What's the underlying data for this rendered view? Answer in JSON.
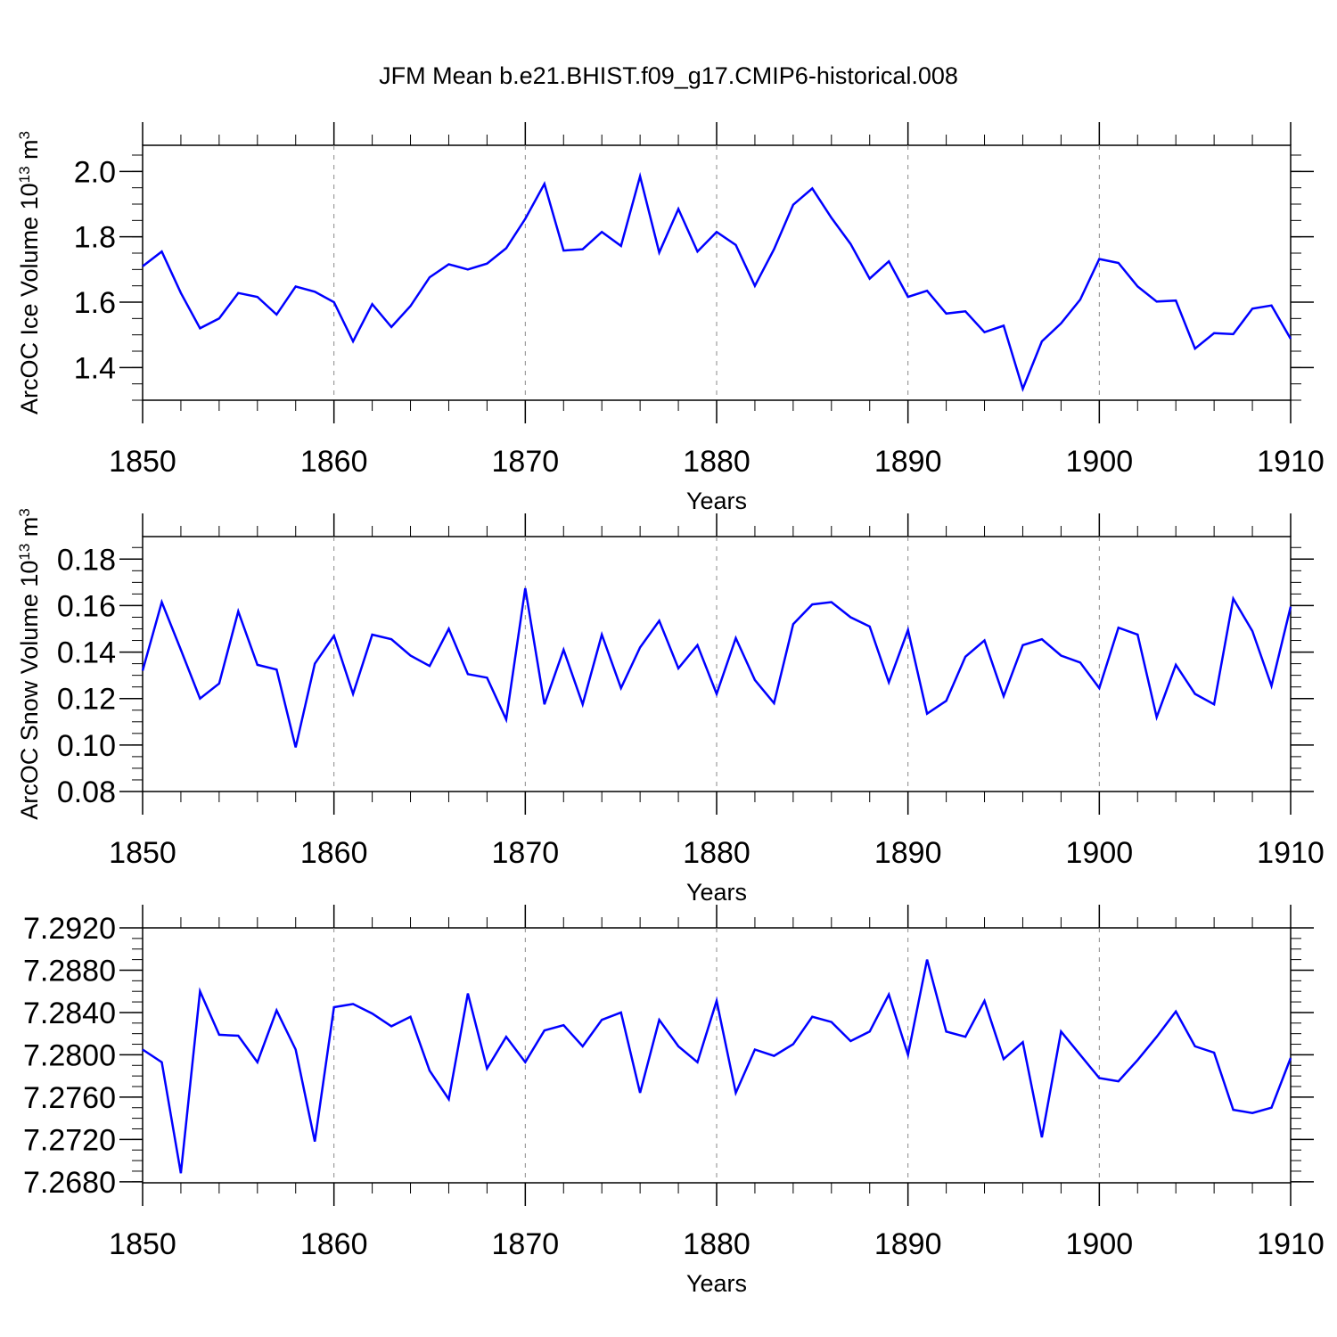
{
  "title": "JFM Mean b.e21.BHIST.f09_g17.CMIP6-historical.008",
  "colors": {
    "series": "#0000ff",
    "axis": "#000000",
    "grid": "#888888"
  },
  "chart_data": [
    {
      "type": "line",
      "xlabel": "Years",
      "ylabel": "ArcOC Ice Volume 10",
      "ylabel_sup": "13",
      "ylabel_unit": " m",
      "ylabel_unit_sup": "3",
      "xlim": [
        1850,
        1910
      ],
      "ylim": [
        1.3,
        2.08
      ],
      "xticks": [
        "1850",
        "1860",
        "1870",
        "1880",
        "1890",
        "1900",
        "1910"
      ],
      "yticks": [
        "1.4",
        "1.6",
        "1.8",
        "2.0"
      ],
      "grid": "vertical dashed at major x ticks",
      "x": [
        1850,
        1851,
        1852,
        1853,
        1854,
        1855,
        1856,
        1857,
        1858,
        1859,
        1860,
        1861,
        1862,
        1863,
        1864,
        1865,
        1866,
        1867,
        1868,
        1869,
        1870,
        1871,
        1872,
        1873,
        1874,
        1875,
        1876,
        1877,
        1878,
        1879,
        1880,
        1881,
        1882,
        1883,
        1884,
        1885,
        1886,
        1887,
        1888,
        1889,
        1890,
        1891,
        1892,
        1893,
        1894,
        1895,
        1896,
        1897,
        1898,
        1899,
        1900,
        1901,
        1902,
        1903,
        1904,
        1905,
        1906,
        1907,
        1908,
        1909,
        1910
      ],
      "values": [
        1.71,
        1.755,
        1.628,
        1.52,
        1.55,
        1.628,
        1.616,
        1.562,
        1.648,
        1.632,
        1.6,
        1.48,
        1.594,
        1.524,
        1.588,
        1.676,
        1.716,
        1.7,
        1.718,
        1.765,
        1.855,
        1.962,
        1.758,
        1.762,
        1.815,
        1.772,
        1.985,
        1.752,
        1.885,
        1.755,
        1.815,
        1.775,
        1.65,
        1.762,
        1.898,
        1.948,
        1.858,
        1.778,
        1.672,
        1.725,
        1.616,
        1.635,
        1.565,
        1.572,
        1.508,
        1.528,
        1.335,
        1.48,
        1.535,
        1.608,
        1.732,
        1.72,
        1.648,
        1.602,
        1.605,
        1.458,
        1.505,
        1.502,
        1.58,
        1.59,
        1.488
      ]
    },
    {
      "type": "line",
      "xlabel": "Years",
      "ylabel": "ArcOC Snow Volume 10",
      "ylabel_sup": "13",
      "ylabel_unit": " m",
      "ylabel_unit_sup": "3",
      "xlim": [
        1850,
        1910
      ],
      "ylim": [
        0.08,
        0.1897
      ],
      "xticks": [
        "1850",
        "1860",
        "1870",
        "1880",
        "1890",
        "1900",
        "1910"
      ],
      "yticks": [
        "0.08",
        "0.10",
        "0.12",
        "0.14",
        "0.16",
        "0.18"
      ],
      "grid": "vertical dashed at major x ticks",
      "x": [
        1850,
        1851,
        1852,
        1853,
        1854,
        1855,
        1856,
        1857,
        1858,
        1859,
        1860,
        1861,
        1862,
        1863,
        1864,
        1865,
        1866,
        1867,
        1868,
        1869,
        1870,
        1871,
        1872,
        1873,
        1874,
        1875,
        1876,
        1877,
        1878,
        1879,
        1880,
        1881,
        1882,
        1883,
        1884,
        1885,
        1886,
        1887,
        1888,
        1889,
        1890,
        1891,
        1892,
        1893,
        1894,
        1895,
        1896,
        1897,
        1898,
        1899,
        1900,
        1901,
        1902,
        1903,
        1904,
        1905,
        1906,
        1907,
        1908,
        1909,
        1910
      ],
      "values": [
        0.132,
        0.1615,
        0.141,
        0.12,
        0.1265,
        0.1575,
        0.1345,
        0.1325,
        0.099,
        0.135,
        0.147,
        0.122,
        0.1475,
        0.1455,
        0.1385,
        0.134,
        0.15,
        0.1305,
        0.129,
        0.111,
        0.1675,
        0.1175,
        0.141,
        0.1175,
        0.1475,
        0.1245,
        0.142,
        0.1535,
        0.133,
        0.143,
        0.122,
        0.146,
        0.128,
        0.118,
        0.152,
        0.1605,
        0.1615,
        0.155,
        0.151,
        0.127,
        0.1495,
        0.1135,
        0.119,
        0.138,
        0.145,
        0.121,
        0.143,
        0.1455,
        0.1385,
        0.1355,
        0.1245,
        0.1505,
        0.1475,
        0.112,
        0.1345,
        0.122,
        0.1175,
        0.163,
        0.149,
        0.1255,
        0.1595
      ]
    },
    {
      "type": "line",
      "xlabel": "Years",
      "ylabel": "",
      "xlim": [
        1850,
        1910
      ],
      "ylim": [
        7.2679,
        7.292
      ],
      "xticks": [
        "1850",
        "1860",
        "1870",
        "1880",
        "1890",
        "1900",
        "1910"
      ],
      "yticks": [
        "7.2680",
        "7.2720",
        "7.2760",
        "7.2800",
        "7.2840",
        "7.2880",
        "7.2920"
      ],
      "grid": "vertical dashed at major x ticks",
      "x": [
        1850,
        1851,
        1852,
        1853,
        1854,
        1855,
        1856,
        1857,
        1858,
        1859,
        1860,
        1861,
        1862,
        1863,
        1864,
        1865,
        1866,
        1867,
        1868,
        1869,
        1870,
        1871,
        1872,
        1873,
        1874,
        1875,
        1876,
        1877,
        1878,
        1879,
        1880,
        1881,
        1882,
        1883,
        1884,
        1885,
        1886,
        1887,
        1888,
        1889,
        1890,
        1891,
        1892,
        1893,
        1894,
        1895,
        1896,
        1897,
        1898,
        1899,
        1900,
        1901,
        1902,
        1903,
        1904,
        1905,
        1906,
        1907,
        1908,
        1909,
        1910
      ],
      "values": [
        7.2805,
        7.2793,
        7.2688,
        7.286,
        7.2819,
        7.2818,
        7.2793,
        7.2842,
        7.2805,
        7.2718,
        7.2845,
        7.2848,
        7.2839,
        7.2827,
        7.2836,
        7.2785,
        7.2758,
        7.2858,
        7.2787,
        7.2817,
        7.2793,
        7.2823,
        7.2828,
        7.2808,
        7.2833,
        7.284,
        7.2764,
        7.2833,
        7.2808,
        7.2793,
        7.2851,
        7.2764,
        7.2805,
        7.2799,
        7.281,
        7.2836,
        7.2831,
        7.2813,
        7.2822,
        7.2857,
        7.28,
        7.289,
        7.2822,
        7.2817,
        7.2851,
        7.2796,
        7.2812,
        7.2722,
        7.2822,
        7.28,
        7.2778,
        7.2775,
        7.2795,
        7.2817,
        7.2841,
        7.2808,
        7.2802,
        7.2748,
        7.2745,
        7.275,
        7.2797
      ]
    }
  ]
}
